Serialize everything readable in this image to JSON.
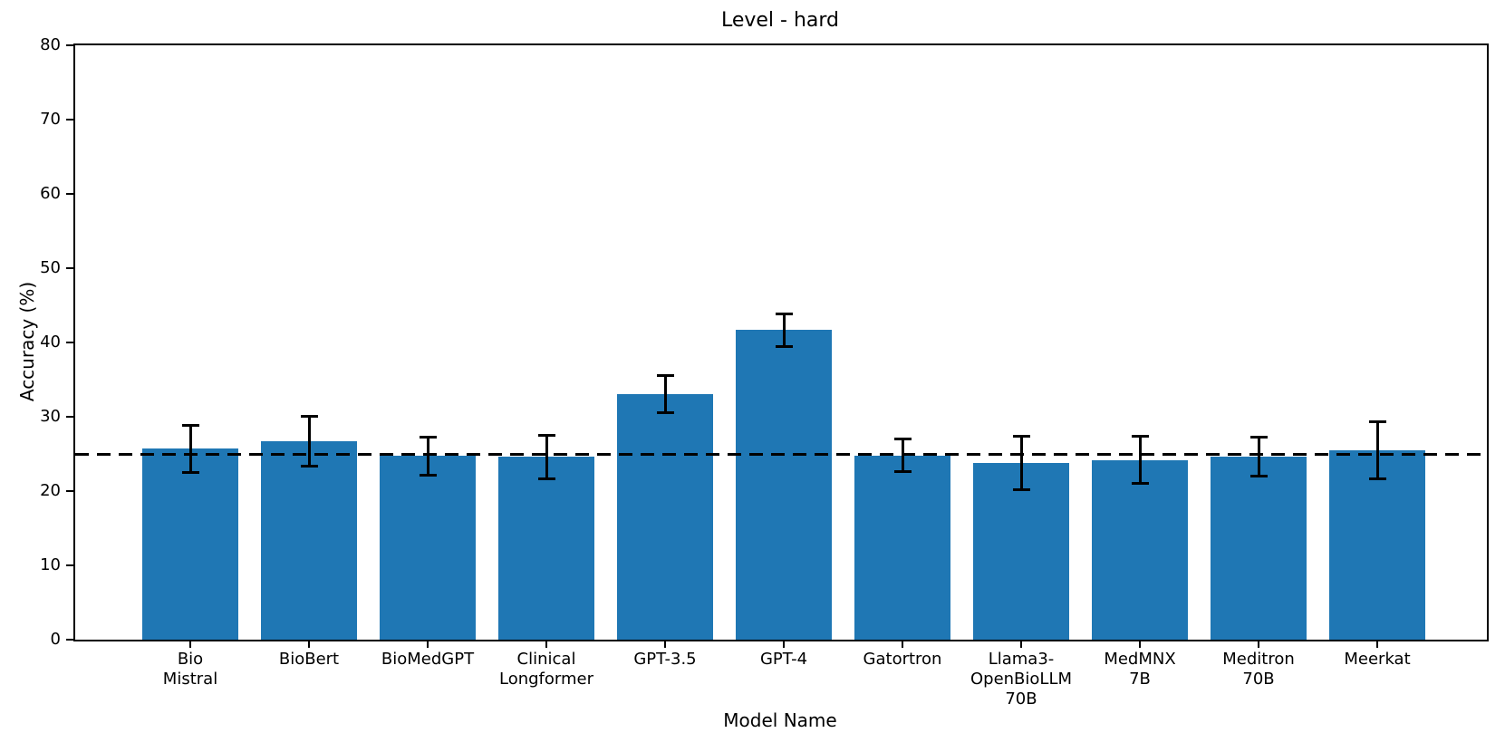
{
  "chart_data": {
    "type": "bar",
    "title": "Level - hard",
    "xlabel": "Model Name",
    "ylabel": "Accuracy (%)",
    "ylim": [
      0,
      80
    ],
    "yticks": [
      0,
      10,
      20,
      30,
      40,
      50,
      60,
      70,
      80
    ],
    "baseline": 25,
    "grid": false,
    "legend": null,
    "bar_color": "#1f77b4",
    "error_color": "#000000",
    "categories": [
      "Bio\nMistral",
      "BioBert",
      "BioMedGPT",
      "Clinical\nLongformer",
      "GPT-3.5",
      "GPT-4",
      "Gatortron",
      "Llama3-\nOpenBioLLM\n70B",
      "MedMNX\n7B",
      "Meditron\n70B",
      "Meerkat"
    ],
    "series": [
      {
        "name": "Accuracy",
        "values": [
          25.7,
          26.7,
          24.7,
          24.6,
          33.0,
          41.7,
          24.8,
          23.8,
          24.2,
          24.6,
          25.5
        ],
        "errors": [
          3.2,
          3.4,
          2.6,
          2.9,
          2.5,
          2.2,
          2.2,
          3.6,
          3.2,
          2.6,
          3.8
        ]
      }
    ]
  }
}
